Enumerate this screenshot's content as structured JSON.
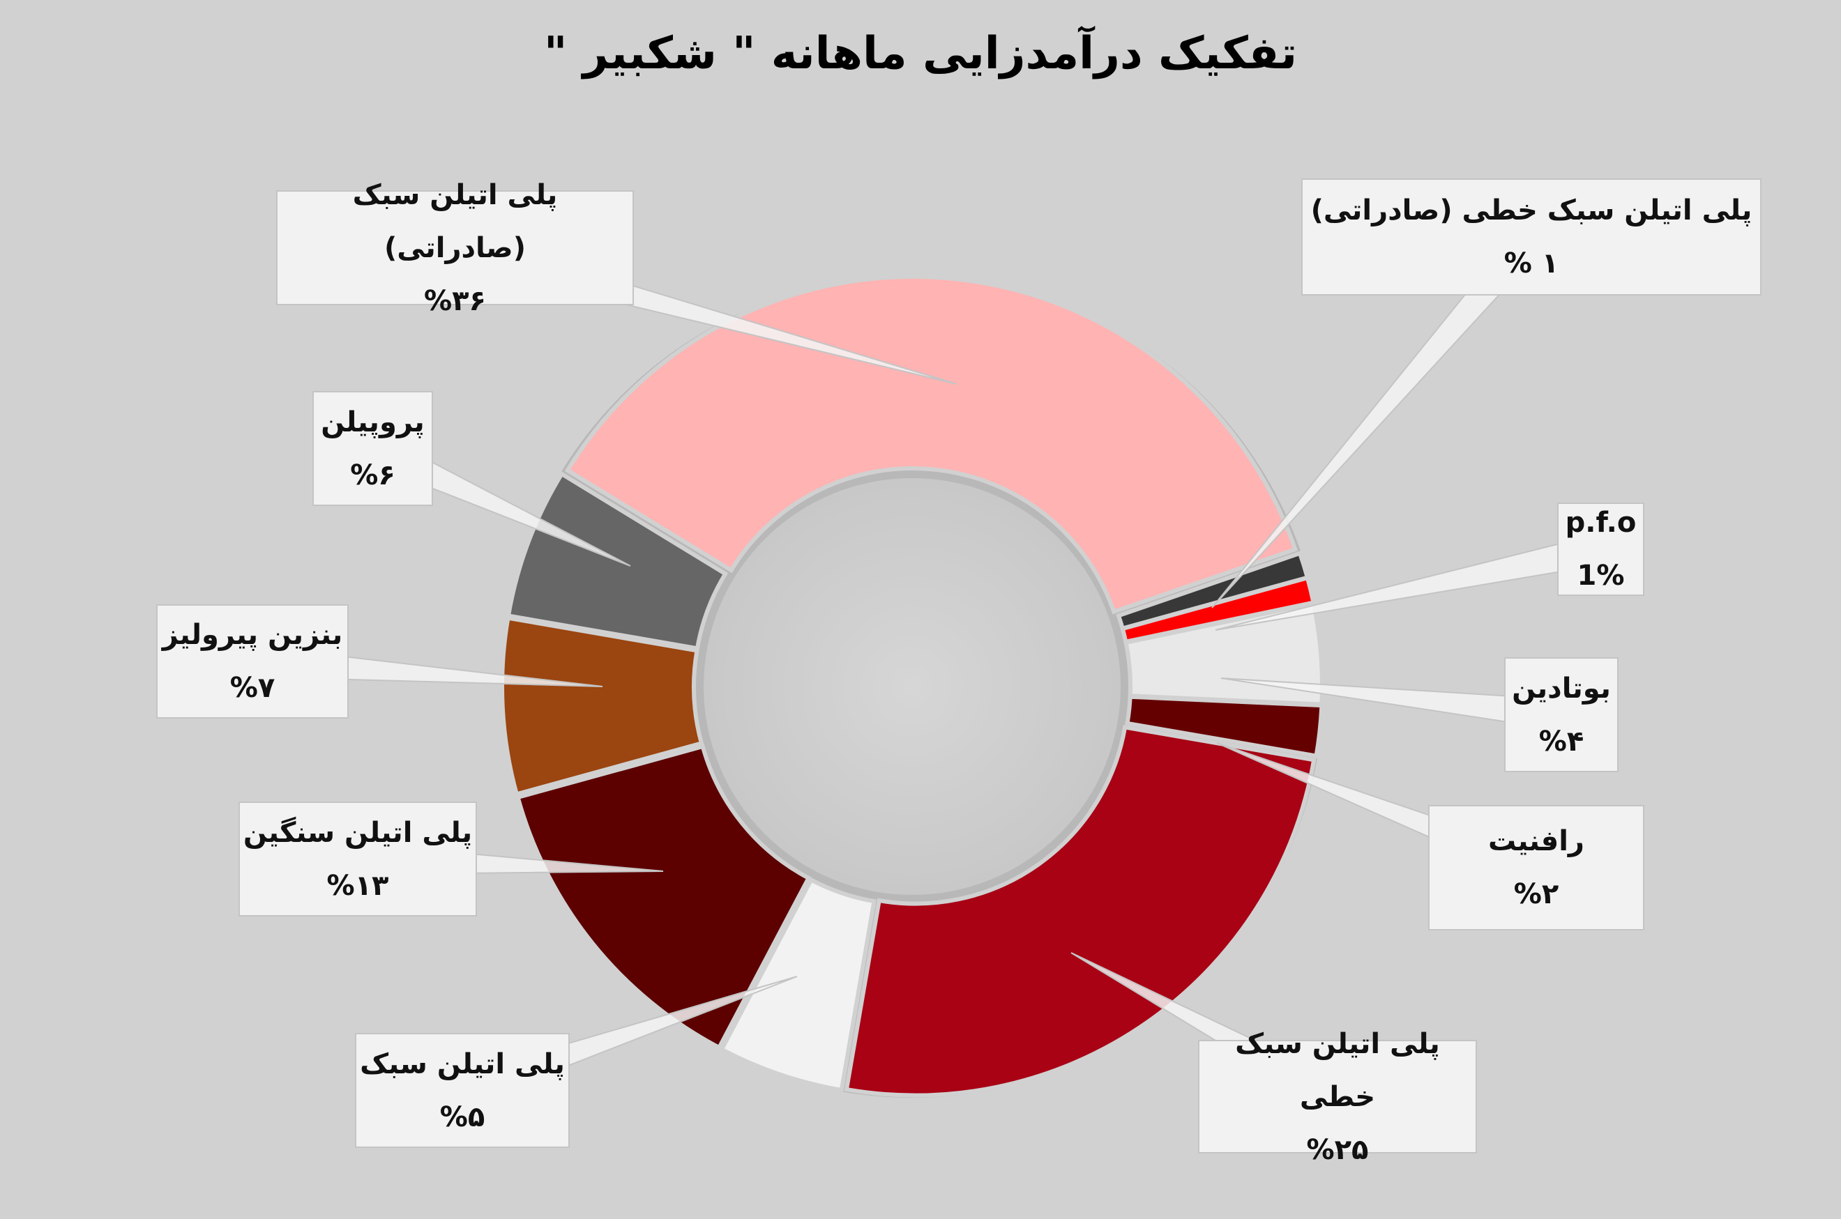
{
  "chart_data": {
    "type": "pie",
    "variant": "donut",
    "title": "تفکیک درآمدزایی ماهانه \" شکبیر \"",
    "slices": [
      {
        "label": "پلی اتیلن سبک (صادراتی)",
        "value": 36,
        "value_label": "%۳۶",
        "color": "#ffb3b3"
      },
      {
        "label": "پلی اتیلن سبک خطی (صادراتی)",
        "value": 1,
        "value_label": "% ۱",
        "color": "#383838"
      },
      {
        "label": "p.f.o",
        "value": 1,
        "value_label": "1%",
        "color": "#ff0000"
      },
      {
        "label": "بوتادین",
        "value": 4,
        "value_label": "%۴",
        "color": "#e8e8e8"
      },
      {
        "label": "رافنیت",
        "value": 2,
        "value_label": "%۲",
        "color": "#650000"
      },
      {
        "label": "پلی اتیلن سبک خطی",
        "value": 25,
        "value_label": "%۲۵",
        "color": "#a80214"
      },
      {
        "label": "پلی اتیلن سبک",
        "value": 5,
        "value_label": "%۵",
        "color": "#f2f2f2"
      },
      {
        "label": "پلی اتیلن سنگین",
        "value": 13,
        "value_label": "%۱۳",
        "color": "#5c0000"
      },
      {
        "label": "بنزین پیرولیز",
        "value": 7,
        "value_label": "%۷",
        "color": "#9b4510"
      },
      {
        "label": "پروپیلن",
        "value": 6,
        "value_label": "%۶",
        "color": "#666666"
      }
    ],
    "legend": "none",
    "background": "#d1d1d1"
  }
}
